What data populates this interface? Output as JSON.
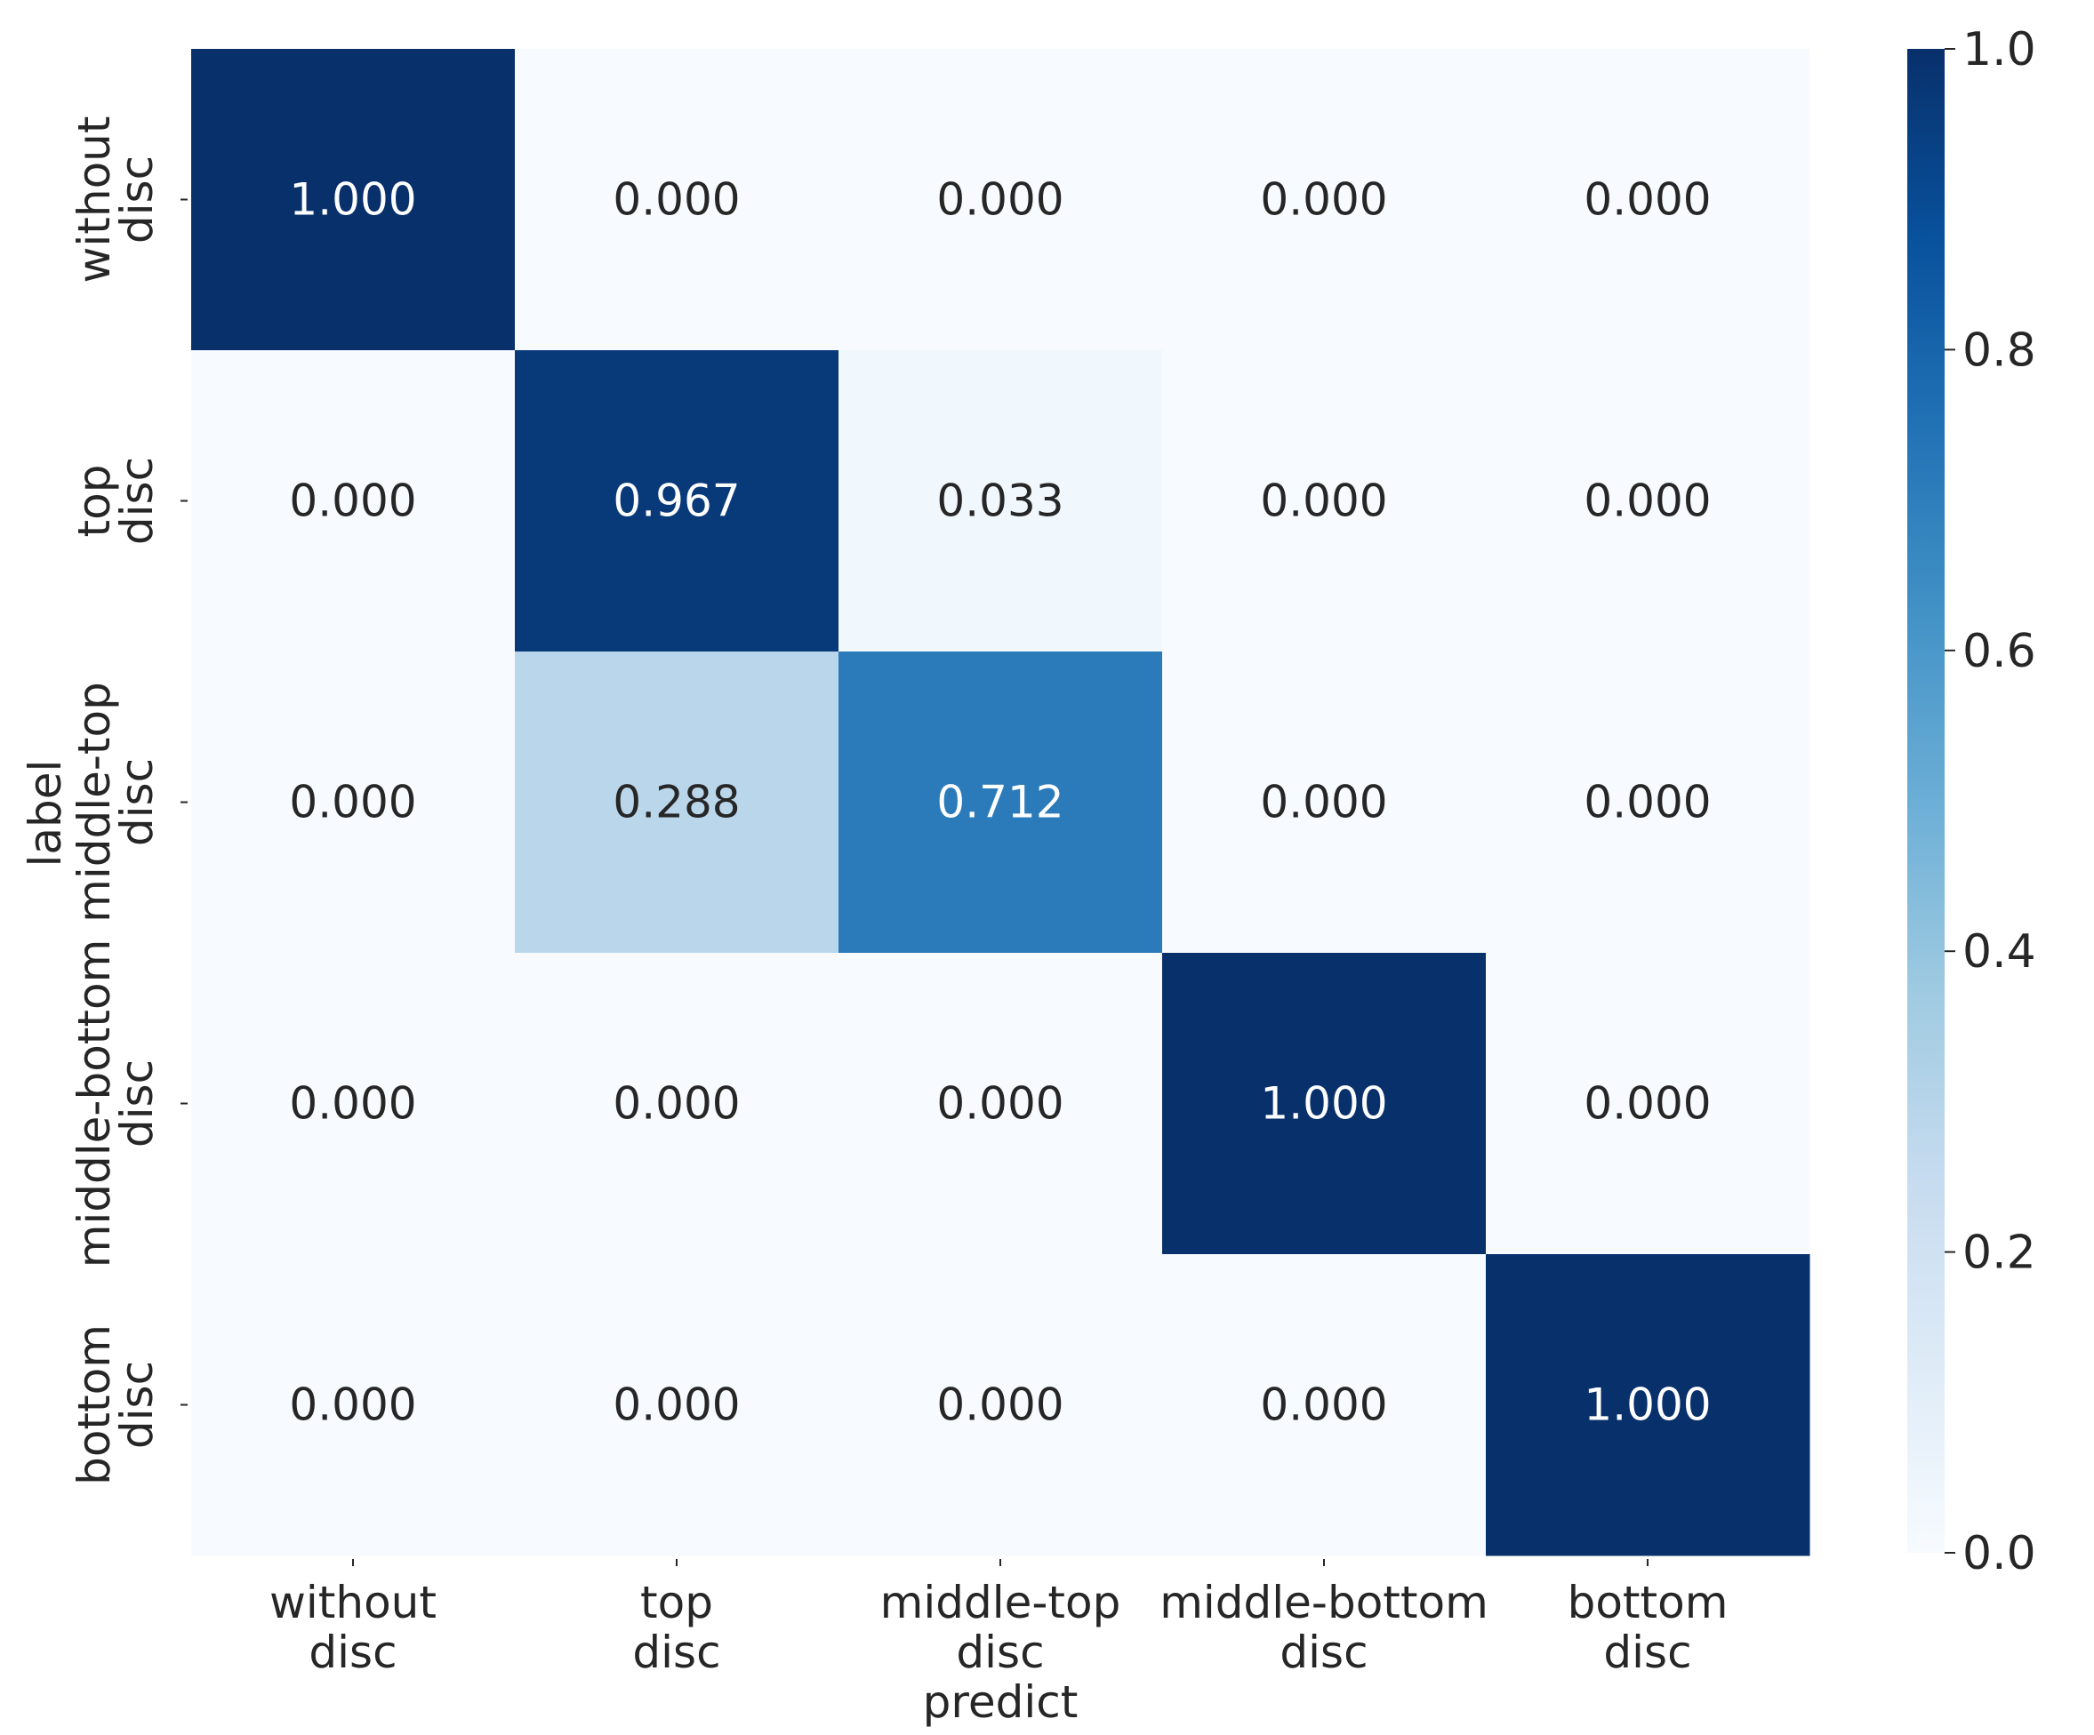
{
  "chart_data": {
    "type": "heatmap",
    "title": "",
    "xlabel": "predict",
    "ylabel": "label",
    "x_categories": [
      [
        "without",
        "disc"
      ],
      [
        "top",
        "disc"
      ],
      [
        "middle-top",
        "disc"
      ],
      [
        "middle-bottom",
        "disc"
      ],
      [
        "bottom",
        "disc"
      ]
    ],
    "y_categories": [
      [
        "without",
        "disc"
      ],
      [
        "top",
        "disc"
      ],
      [
        "middle-top",
        "disc"
      ],
      [
        "middle-bottom",
        "disc"
      ],
      [
        "bottom",
        "disc"
      ]
    ],
    "values": [
      [
        1.0,
        0.0,
        0.0,
        0.0,
        0.0
      ],
      [
        0.0,
        0.967,
        0.033,
        0.0,
        0.0
      ],
      [
        0.0,
        0.288,
        0.712,
        0.0,
        0.0
      ],
      [
        0.0,
        0.0,
        0.0,
        1.0,
        0.0
      ],
      [
        0.0,
        0.0,
        0.0,
        0.0,
        1.0
      ]
    ],
    "value_format": "0.000",
    "colormap": "Blues",
    "vmin": 0.0,
    "vmax": 1.0,
    "colorbar": {
      "ticks": [
        0.0,
        0.2,
        0.4,
        0.6,
        0.8,
        1.0
      ],
      "tick_labels": [
        "0.0",
        "0.2",
        "0.4",
        "0.6",
        "0.8",
        "1.0"
      ]
    },
    "grid": false,
    "legend": "none"
  }
}
